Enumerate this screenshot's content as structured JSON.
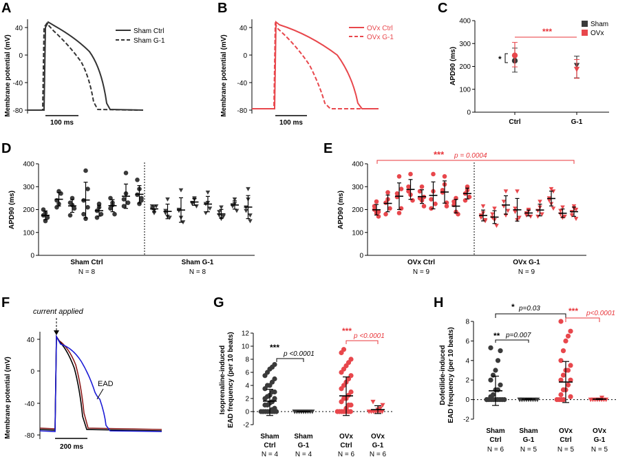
{
  "colors": {
    "sham": "#3a3a3a",
    "ovx": "#e8474c",
    "sig_red": "#e8353a"
  },
  "panels": {
    "A": {
      "label": "A",
      "ylabel": "Membrane potential (mV)",
      "yticks": [
        "40",
        "0",
        "-40",
        "-80"
      ],
      "scale": "100 ms",
      "legend": [
        "Sham Ctrl",
        "Sham G-1"
      ]
    },
    "B": {
      "label": "B",
      "ylabel": "Membrane potential (mV)",
      "yticks": [
        "40",
        "0",
        "-40",
        "-80"
      ],
      "scale": "100 ms",
      "legend": [
        "OVx Ctrl",
        "OVx G-1"
      ]
    },
    "C": {
      "label": "C",
      "legend": [
        "Sham",
        "OVx"
      ],
      "sig_star": "*",
      "sig_red": "***"
    },
    "D": {
      "label": "D",
      "groups": [
        {
          "name": "Sham Ctrl",
          "n": "N = 8"
        },
        {
          "name": "Sham G-1",
          "n": "N = 8"
        }
      ]
    },
    "E": {
      "label": "E",
      "sig": "***",
      "p": "p = 0.0004",
      "groups": [
        {
          "name": "OVx Ctrl",
          "n": "N = 9"
        },
        {
          "name": "OVx G-1",
          "n": "N = 9"
        }
      ]
    },
    "F": {
      "label": "F",
      "annotation": "current applied",
      "ead": "EAD",
      "ylabel": "Membrane potential (mV)",
      "yticks": [
        "40",
        "0",
        "-40",
        "-80"
      ],
      "scale": "200 ms"
    },
    "G": {
      "label": "G",
      "ylabel_1": "Isoprenaline-induced",
      "ylabel_2": "EAD frequency (per 10 beats)",
      "sig_black": "***",
      "p_black": "p <0.0001",
      "sig_red": "***",
      "p_red": "p <0.0001",
      "groups": [
        {
          "l1": "Sham",
          "l2": "Ctrl",
          "n": "N = 4"
        },
        {
          "l1": "Sham",
          "l2": "G-1",
          "n": "N = 4"
        },
        {
          "l1": "OVx",
          "l2": "Ctrl",
          "n": "N = 6"
        },
        {
          "l1": "OVx",
          "l2": "G-1",
          "n": "N = 6"
        }
      ]
    },
    "H": {
      "label": "H",
      "ylabel_1": "Dofetilide-induced",
      "ylabel_2": "EAD frequency (per 10 beats)",
      "sig_top": "*",
      "p_top": "p=0.03",
      "sig_black": "**",
      "p_black": "p=0.007",
      "sig_red": "***",
      "p_red": "p<0.0001",
      "groups": [
        {
          "l1": "Sham",
          "l2": "Ctrl",
          "n": "N = 6"
        },
        {
          "l1": "Sham",
          "l2": "G-1",
          "n": "N = 5"
        },
        {
          "l1": "OVx",
          "l2": "Ctrl",
          "n": "N = 5"
        },
        {
          "l1": "OVx",
          "l2": "G-1",
          "n": "N = 5"
        }
      ]
    }
  },
  "chart_data": [
    {
      "panel": "C",
      "type": "scatter",
      "title": "",
      "xlabel": "",
      "ylabel": "APD90 (ms)",
      "categories": [
        "Ctrl",
        "G-1"
      ],
      "ylim": [
        0,
        400
      ],
      "yticks": [
        0,
        100,
        200,
        300,
        400
      ],
      "series": [
        {
          "name": "Sham",
          "means": [
            225,
            205
          ],
          "sd_low": [
            175,
            150
          ],
          "sd_high": [
            280,
            245
          ]
        },
        {
          "name": "OVx",
          "means": [
            248,
            188
          ],
          "sd_low": [
            198,
            148
          ],
          "sd_high": [
            305,
            230
          ]
        }
      ]
    },
    {
      "panel": "D",
      "type": "scatter",
      "ylabel": "APD90 (ms)",
      "ylim": [
        0,
        400
      ],
      "yticks": [
        0,
        100,
        200,
        300,
        400
      ],
      "groups": [
        "Sham Ctrl",
        "Sham G-1"
      ],
      "animals": [
        {
          "group": "Sham Ctrl",
          "points": [
            175,
            150,
            165,
            200,
            185
          ]
        },
        {
          "group": "Sham Ctrl",
          "points": [
            240,
            280,
            270,
            210,
            225
          ]
        },
        {
          "group": "Sham Ctrl",
          "points": [
            230,
            250,
            205,
            175,
            220
          ]
        },
        {
          "group": "Sham Ctrl",
          "points": [
            240,
            370,
            290,
            180,
            160,
            210
          ]
        },
        {
          "group": "Sham Ctrl",
          "points": [
            195,
            210,
            180,
            165,
            225
          ]
        },
        {
          "group": "Sham Ctrl",
          "points": [
            205,
            220,
            180,
            250,
            230
          ]
        },
        {
          "group": "Sham Ctrl",
          "points": [
            245,
            360,
            230,
            215,
            270,
            230
          ]
        },
        {
          "group": "Sham Ctrl",
          "points": [
            265,
            290,
            250,
            330,
            225,
            240
          ]
        },
        {
          "group": "Sham G-1",
          "points": [
            205,
            195,
            215,
            215,
            185
          ]
        },
        {
          "group": "Sham G-1",
          "points": [
            195,
            245,
            165,
            185,
            170
          ]
        },
        {
          "group": "Sham G-1",
          "points": [
            200,
            285,
            145,
            195,
            165
          ]
        },
        {
          "group": "Sham G-1",
          "points": [
            230,
            250,
            215,
            225,
            245
          ]
        },
        {
          "group": "Sham G-1",
          "points": [
            225,
            275,
            205,
            185,
            230
          ]
        },
        {
          "group": "Sham G-1",
          "points": [
            190,
            210,
            170,
            175,
            160
          ]
        },
        {
          "group": "Sham G-1",
          "points": [
            220,
            245,
            195,
            215,
            225
          ]
        },
        {
          "group": "Sham G-1",
          "points": [
            210,
            290,
            175,
            195,
            245,
            150
          ]
        }
      ]
    },
    {
      "panel": "E",
      "type": "scatter",
      "ylabel": "APD90 (ms)",
      "ylim": [
        0,
        400
      ],
      "yticks": [
        0,
        100,
        200,
        300,
        400
      ],
      "groups": [
        "OVx Ctrl",
        "OVx G-1"
      ],
      "animals": [
        {
          "group": "OVx Ctrl",
          "points": [
            200,
            185,
            170,
            215,
            235,
            190
          ]
        },
        {
          "group": "OVx Ctrl",
          "points": [
            230,
            275,
            205,
            180,
            245
          ]
        },
        {
          "group": "OVx Ctrl",
          "points": [
            255,
            345,
            205,
            270,
            185,
            290
          ]
        },
        {
          "group": "OVx Ctrl",
          "points": [
            280,
            355,
            240,
            300,
            265
          ]
        },
        {
          "group": "OVx Ctrl",
          "points": [
            250,
            300,
            215,
            280,
            240,
            255
          ]
        },
        {
          "group": "OVx Ctrl",
          "points": [
            245,
            355,
            225,
            205,
            280
          ]
        },
        {
          "group": "OVx Ctrl",
          "points": [
            275,
            345,
            230,
            285,
            310,
            215
          ]
        },
        {
          "group": "OVx Ctrl",
          "points": [
            220,
            250,
            180,
            235,
            190
          ]
        },
        {
          "group": "OVx Ctrl",
          "points": [
            270,
            300,
            255,
            240,
            285
          ]
        },
        {
          "group": "OVx G-1",
          "points": [
            175,
            215,
            150,
            165,
            185,
            155
          ]
        },
        {
          "group": "OVx G-1",
          "points": [
            165,
            205,
            130,
            180,
            155
          ]
        },
        {
          "group": "OVx G-1",
          "points": [
            215,
            280,
            195,
            235,
            175
          ]
        },
        {
          "group": "OVx G-1",
          "points": [
            190,
            280,
            165,
            205,
            155
          ]
        },
        {
          "group": "OVx G-1",
          "points": [
            185,
            200,
            170,
            175,
            195
          ]
        },
        {
          "group": "OVx G-1",
          "points": [
            195,
            235,
            180,
            170,
            210
          ]
        },
        {
          "group": "OVx G-1",
          "points": [
            240,
            290,
            205,
            250,
            225,
            280
          ]
        },
        {
          "group": "OVx G-1",
          "points": [
            180,
            210,
            170,
            195,
            165
          ]
        },
        {
          "group": "OVx G-1",
          "points": [
            190,
            215,
            160,
            175,
            205,
            200
          ]
        }
      ]
    },
    {
      "panel": "G",
      "type": "scatter",
      "ylabel": "Isoprenaline-induced EAD frequency (per 10 beats)",
      "ylim": [
        -2,
        12
      ],
      "yticks": [
        -2,
        0,
        2,
        4,
        6,
        8,
        10,
        12
      ],
      "categories": [
        "Sham Ctrl",
        "Sham G-1",
        "OVx Ctrl",
        "OVx G-1"
      ],
      "means": [
        1.6,
        0.0,
        2.4,
        0.3
      ],
      "sd_low": [
        -0.6,
        0.0,
        -0.6,
        -0.3
      ],
      "sd_high": [
        3.4,
        0.0,
        5.3,
        0.9
      ],
      "points": [
        [
          0,
          0,
          0,
          0,
          0,
          0,
          0,
          0,
          0.3,
          0.5,
          1,
          1,
          1.3,
          1.5,
          2,
          2,
          2.3,
          2.5,
          3,
          3,
          3.5,
          4,
          4,
          4.5,
          5,
          5.5,
          6,
          6.5,
          6.8,
          7.2
        ],
        [
          0,
          0,
          0,
          0,
          0,
          0,
          0,
          0,
          0,
          0,
          0,
          0,
          0,
          0,
          0
        ],
        [
          0,
          0,
          0,
          0,
          0,
          0,
          0,
          0.5,
          1,
          1,
          1.5,
          2,
          2,
          2.5,
          3,
          3.5,
          4,
          4.5,
          5,
          5.5,
          6,
          6.5,
          7,
          7.5,
          8,
          9,
          9.5
        ],
        [
          0,
          0,
          0,
          0,
          0,
          0,
          0,
          0.3,
          0.5,
          1,
          1.5
        ]
      ]
    },
    {
      "panel": "H",
      "type": "scatter",
      "ylabel": "Dofetilide-induced EAD frequency (per 10 beats)",
      "ylim": [
        -2,
        8
      ],
      "yticks": [
        -2,
        0,
        2,
        4,
        6,
        8
      ],
      "categories": [
        "Sham Ctrl",
        "Sham G-1",
        "OVx Ctrl",
        "OVx G-1"
      ],
      "means": [
        0.9,
        0.05,
        1.8,
        0.05
      ],
      "sd_low": [
        -0.6,
        0.0,
        -0.3,
        0.0
      ],
      "sd_high": [
        2.4,
        0.1,
        3.9,
        0.1
      ],
      "points": [
        [
          0,
          0,
          0,
          0,
          0,
          0,
          0,
          0,
          0,
          0,
          0.3,
          0.5,
          1,
          1,
          1.5,
          2,
          2.5,
          3,
          4,
          5,
          5.3
        ],
        [
          0,
          0,
          0,
          0,
          0,
          0,
          0,
          0,
          0,
          0,
          0
        ],
        [
          0,
          0,
          0,
          0,
          0.3,
          0.5,
          1,
          1,
          1.5,
          2,
          2,
          2.5,
          3,
          3,
          3.5,
          4,
          5,
          6,
          6.5,
          7,
          8
        ],
        [
          0,
          0,
          0,
          0,
          0,
          0,
          0,
          0,
          0.2
        ]
      ]
    }
  ]
}
